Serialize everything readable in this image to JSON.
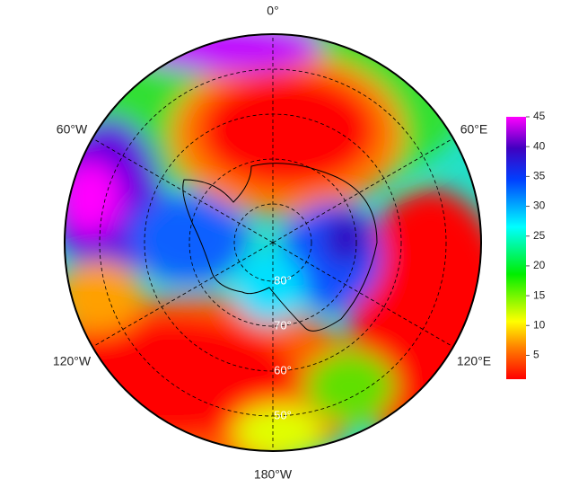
{
  "map": {
    "longitude_labels": [
      "0°",
      "60°E",
      "120°E",
      "180°W",
      "120°W",
      "60°W"
    ],
    "latitude_labels": [
      "80°",
      "70°",
      "60°",
      "50°"
    ],
    "colorbar": {
      "lim": [
        1,
        45
      ],
      "ticks": [
        5,
        10,
        15,
        20,
        25,
        30,
        35,
        40,
        45
      ]
    }
  }
}
